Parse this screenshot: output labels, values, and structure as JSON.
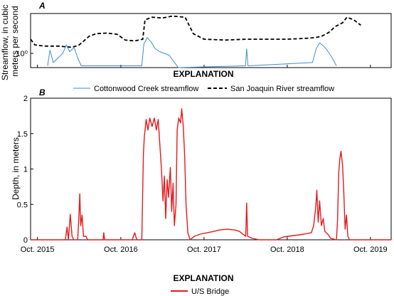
{
  "figure": {
    "panel_a_letter": "A",
    "panel_b_letter": "B",
    "explanation_a": "EXPLANATION",
    "explanation_b": "EXPLANATION",
    "colors": {
      "cottonwood": "#3a8ed0",
      "sanjoaquin": "#000000",
      "depth": "#e31a1c"
    }
  },
  "chart_data": [
    {
      "type": "line",
      "ylabel": "Streamflow, in cubic meters per second",
      "y_tick_labels": [
        "10⁰"
      ],
      "log_scale": true,
      "x_domain": [
        "2015-09-01",
        "2019-12-31"
      ],
      "legend": [
        {
          "name": "Cottonwood Creek streamflow",
          "style": "solid"
        },
        {
          "name": "San Joaquin River streamflow",
          "style": "dashed"
        }
      ],
      "legend_placement": "below",
      "series": [
        {
          "name": "San Joaquin River streamflow",
          "points": [
            [
              "2015-09-01",
              2.2
            ],
            [
              "2015-09-20",
              1.6
            ],
            [
              "2015-11-01",
              1.5
            ],
            [
              "2016-01-01",
              1.5
            ],
            [
              "2016-03-01",
              1.4
            ],
            [
              "2016-04-01",
              1.6
            ],
            [
              "2016-05-15",
              2.6
            ],
            [
              "2016-06-15",
              3.0
            ],
            [
              "2016-08-01",
              3.1
            ],
            [
              "2016-09-15",
              2.9
            ],
            [
              "2016-10-20",
              2.1
            ],
            [
              "2016-12-01",
              2.0
            ],
            [
              "2017-01-05",
              2.2
            ],
            [
              "2017-01-15",
              6.5
            ],
            [
              "2017-02-15",
              7.5
            ],
            [
              "2017-04-01",
              7.2
            ],
            [
              "2017-05-15",
              8.0
            ],
            [
              "2017-07-10",
              7.5
            ],
            [
              "2017-08-15",
              3.0
            ],
            [
              "2017-10-01",
              2.2
            ],
            [
              "2018-01-01",
              2.1
            ],
            [
              "2018-04-01",
              2.2
            ],
            [
              "2018-07-01",
              2.2
            ],
            [
              "2018-10-01",
              2.2
            ],
            [
              "2018-12-15",
              2.3
            ],
            [
              "2019-02-01",
              2.4
            ],
            [
              "2019-03-01",
              2.6
            ],
            [
              "2019-04-01",
              3.2
            ],
            [
              "2019-05-01",
              4.5
            ],
            [
              "2019-06-01",
              5.5
            ],
            [
              "2019-06-20",
              7.5
            ],
            [
              "2019-07-20",
              6.5
            ],
            [
              "2019-08-20",
              4.8
            ]
          ]
        },
        {
          "name": "Cottonwood Creek streamflow",
          "points": [
            [
              "2015-11-15",
              0.5
            ],
            [
              "2015-11-25",
              1.2
            ],
            [
              "2015-12-10",
              0.6
            ],
            [
              "2016-01-20",
              1.0
            ],
            [
              "2016-02-05",
              1.6
            ],
            [
              "2016-02-20",
              1.1
            ],
            [
              "2016-03-10",
              1.4
            ],
            [
              "2016-03-25",
              0.8
            ],
            [
              "2016-04-10",
              0.5
            ],
            [
              "2017-01-01",
              0.5
            ],
            [
              "2017-01-10",
              1.7
            ],
            [
              "2017-01-25",
              2.4
            ],
            [
              "2017-02-10",
              1.9
            ],
            [
              "2017-03-01",
              1.3
            ],
            [
              "2017-03-20",
              1.1
            ],
            [
              "2017-04-10",
              1.0
            ],
            [
              "2017-05-01",
              0.9
            ],
            [
              "2017-05-25",
              0.6
            ],
            [
              "2017-06-10",
              0.4
            ],
            [
              "2018-04-01",
              0.5
            ],
            [
              "2018-04-06",
              1.3
            ],
            [
              "2018-04-12",
              0.5
            ],
            [
              "2019-01-20",
              0.6
            ],
            [
              "2019-02-05",
              1.3
            ],
            [
              "2019-02-20",
              1.8
            ],
            [
              "2019-03-10",
              1.5
            ],
            [
              "2019-03-25",
              1.2
            ],
            [
              "2019-04-15",
              0.8
            ],
            [
              "2019-05-05",
              0.5
            ]
          ]
        }
      ]
    },
    {
      "type": "line",
      "ylabel": "Depth, in meters",
      "ylim": [
        0,
        2
      ],
      "y_ticks": [
        0,
        0.5,
        1,
        1.5,
        2
      ],
      "y_tick_labels": [
        "0",
        "0.5",
        "1",
        "1.5",
        "2"
      ],
      "x_domain": [
        "2015-09-01",
        "2019-12-31"
      ],
      "x_ticks": [
        "2015-10-01",
        "2016-10-01",
        "2017-10-01",
        "2018-10-01",
        "2019-10-01"
      ],
      "x_tick_labels": [
        "Oct. 2015",
        "Oct. 2016",
        "Oct. 2017",
        "Oct. 2018",
        "Oct. 2019"
      ],
      "legend": [
        {
          "name": "U/S Bridge",
          "style": "solid"
        }
      ],
      "legend_placement": "below",
      "series": [
        {
          "name": "U/S Bridge",
          "points": [
            [
              "2015-09-01",
              0
            ],
            [
              "2016-02-01",
              0
            ],
            [
              "2016-02-08",
              0.18
            ],
            [
              "2016-02-14",
              0
            ],
            [
              "2016-02-22",
              0.36
            ],
            [
              "2016-03-01",
              0.05
            ],
            [
              "2016-03-08",
              0
            ],
            [
              "2016-03-26",
              0
            ],
            [
              "2016-04-01",
              0.42
            ],
            [
              "2016-04-04",
              0.65
            ],
            [
              "2016-04-08",
              0.2
            ],
            [
              "2016-04-14",
              0.35
            ],
            [
              "2016-04-20",
              0.05
            ],
            [
              "2016-05-01",
              0.05
            ],
            [
              "2016-05-08",
              0
            ],
            [
              "2016-07-15",
              0
            ],
            [
              "2016-07-18",
              0.1
            ],
            [
              "2016-07-22",
              0
            ],
            [
              "2016-11-20",
              0
            ],
            [
              "2016-12-01",
              0.1
            ],
            [
              "2016-12-10",
              0
            ],
            [
              "2017-01-01",
              0
            ],
            [
              "2017-01-08",
              1.2
            ],
            [
              "2017-01-12",
              1.45
            ],
            [
              "2017-01-20",
              1.7
            ],
            [
              "2017-01-28",
              1.55
            ],
            [
              "2017-02-05",
              1.72
            ],
            [
              "2017-02-15",
              1.6
            ],
            [
              "2017-02-25",
              1.72
            ],
            [
              "2017-03-06",
              1.55
            ],
            [
              "2017-03-14",
              1.7
            ],
            [
              "2017-03-20",
              1.4
            ],
            [
              "2017-03-28",
              1.0
            ],
            [
              "2017-04-04",
              0.55
            ],
            [
              "2017-04-10",
              0.9
            ],
            [
              "2017-04-16",
              0.3
            ],
            [
              "2017-04-22",
              0.85
            ],
            [
              "2017-04-28",
              0.6
            ],
            [
              "2017-05-06",
              1.02
            ],
            [
              "2017-05-12",
              0.4
            ],
            [
              "2017-05-18",
              0.8
            ],
            [
              "2017-05-24",
              0.2
            ],
            [
              "2017-05-31",
              0.5
            ],
            [
              "2017-06-05",
              1.55
            ],
            [
              "2017-06-12",
              1.72
            ],
            [
              "2017-06-20",
              1.65
            ],
            [
              "2017-06-25",
              1.85
            ],
            [
              "2017-07-02",
              1.6
            ],
            [
              "2017-07-08",
              1.2
            ],
            [
              "2017-07-14",
              0.5
            ],
            [
              "2017-07-22",
              0.1
            ],
            [
              "2017-08-01",
              0
            ],
            [
              "2017-08-20",
              0.05
            ],
            [
              "2017-09-15",
              0.08
            ],
            [
              "2017-10-15",
              0.1
            ],
            [
              "2017-11-15",
              0.12
            ],
            [
              "2017-12-10",
              0.14
            ],
            [
              "2018-01-10",
              0.15
            ],
            [
              "2018-02-10",
              0.14
            ],
            [
              "2018-03-05",
              0.12
            ],
            [
              "2018-03-20",
              0.08
            ],
            [
              "2018-04-02",
              0.05
            ],
            [
              "2018-04-06",
              0.52
            ],
            [
              "2018-04-10",
              0.05
            ],
            [
              "2018-05-01",
              0.02
            ],
            [
              "2018-06-01",
              0
            ],
            [
              "2018-08-15",
              0
            ],
            [
              "2018-09-15",
              0.04
            ],
            [
              "2018-11-01",
              0.06
            ],
            [
              "2018-12-15",
              0.08
            ],
            [
              "2019-01-15",
              0.1
            ],
            [
              "2019-01-25",
              0.2
            ],
            [
              "2019-02-03",
              0.45
            ],
            [
              "2019-02-08",
              0.7
            ],
            [
              "2019-02-14",
              0.25
            ],
            [
              "2019-02-20",
              0.55
            ],
            [
              "2019-02-28",
              0.2
            ],
            [
              "2019-03-08",
              0.3
            ],
            [
              "2019-03-15",
              0.12
            ],
            [
              "2019-03-28",
              0.08
            ],
            [
              "2019-04-10",
              0.02
            ],
            [
              "2019-05-05",
              0
            ],
            [
              "2019-05-10",
              0.3
            ],
            [
              "2019-05-15",
              0.95
            ],
            [
              "2019-05-20",
              1.15
            ],
            [
              "2019-05-25",
              1.25
            ],
            [
              "2019-06-01",
              1.05
            ],
            [
              "2019-06-06",
              0.7
            ],
            [
              "2019-06-12",
              0.15
            ],
            [
              "2019-06-18",
              0.35
            ],
            [
              "2019-06-24",
              0.05
            ],
            [
              "2019-07-01",
              0
            ],
            [
              "2019-12-31",
              0
            ]
          ]
        }
      ]
    }
  ]
}
